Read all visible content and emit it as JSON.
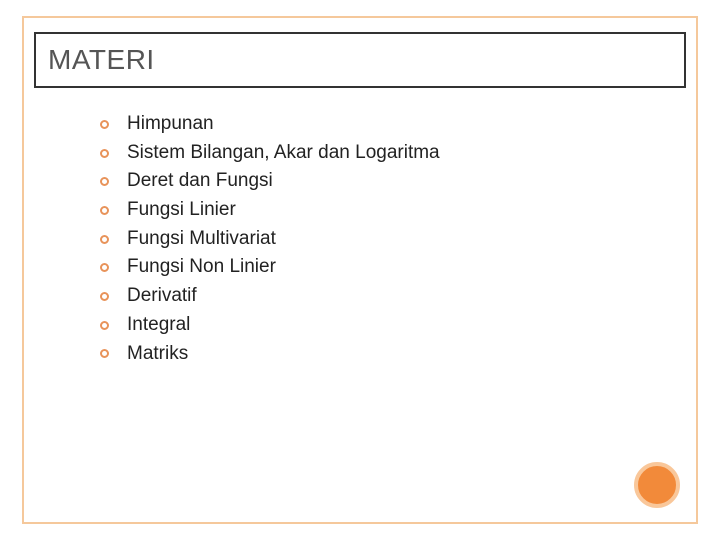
{
  "slide": {
    "title": "MATERI",
    "title_color": "#555555",
    "title_fontsize": 28,
    "title_border_color": "#333333",
    "frame_color": "#f5c89b",
    "background": "#ffffff",
    "items": [
      {
        "label": "Himpunan"
      },
      {
        "label": "Sistem Bilangan, Akar dan Logaritma"
      },
      {
        "label": "Deret dan Fungsi"
      },
      {
        "label": "Fungsi Linier"
      },
      {
        "label": "Fungsi Multivariat"
      },
      {
        "label": "Fungsi Non Linier"
      },
      {
        "label": "Derivatif"
      },
      {
        "label": "Integral"
      },
      {
        "label": "Matriks"
      }
    ],
    "item_fontsize": 19,
    "item_color": "#222222",
    "bullet": {
      "border_color": "#e8935a",
      "fill": "transparent",
      "size": 9
    },
    "accent_circle": {
      "fill": "#f28a3a",
      "border": "#f9c79a",
      "size": 46
    }
  }
}
